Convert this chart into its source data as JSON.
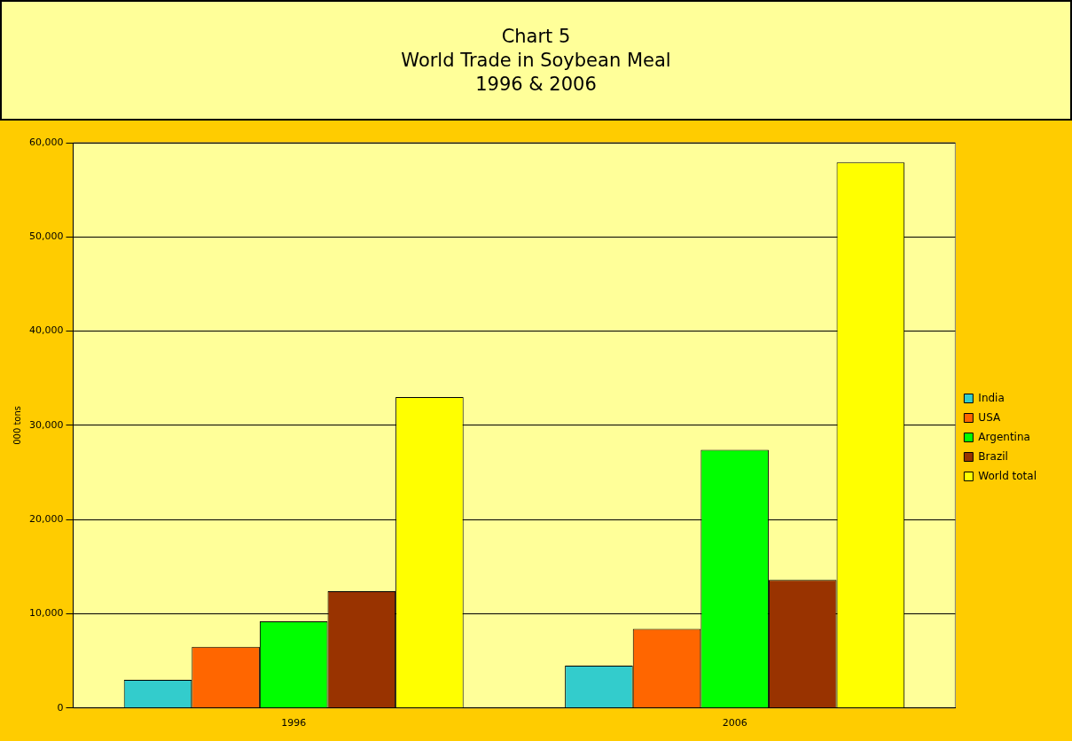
{
  "chart_data": {
    "type": "bar",
    "title": "Chart 5",
    "subtitle": "World Trade in Soybean Meal\n1996 & 2006",
    "ylabel": "000 tons",
    "categories": [
      "1996",
      "2006"
    ],
    "series": [
      {
        "name": "India",
        "color": "#33cccc",
        "values": [
          3000,
          4500
        ]
      },
      {
        "name": "USA",
        "color": "#ff6600",
        "values": [
          6500,
          8400
        ]
      },
      {
        "name": "Argentina",
        "color": "#00ff00",
        "values": [
          9200,
          27400
        ]
      },
      {
        "name": "Brazil",
        "color": "#993300",
        "values": [
          12400,
          13600
        ]
      },
      {
        "name": "World total",
        "color": "#ffff00",
        "values": [
          33000,
          57900
        ]
      }
    ],
    "ylim": [
      0,
      60000
    ],
    "yticks": [
      0,
      {
        "value": 10000,
        "label": "10,000"
      },
      {
        "value": 20000,
        "label": "20,000"
      },
      {
        "value": 30000,
        "label": "30,000"
      },
      {
        "value": 40000,
        "label": "40,000"
      },
      {
        "value": 50000,
        "label": "50,000"
      },
      {
        "value": 60000,
        "label": "60,000"
      }
    ],
    "grid": "y",
    "legend": "right"
  }
}
